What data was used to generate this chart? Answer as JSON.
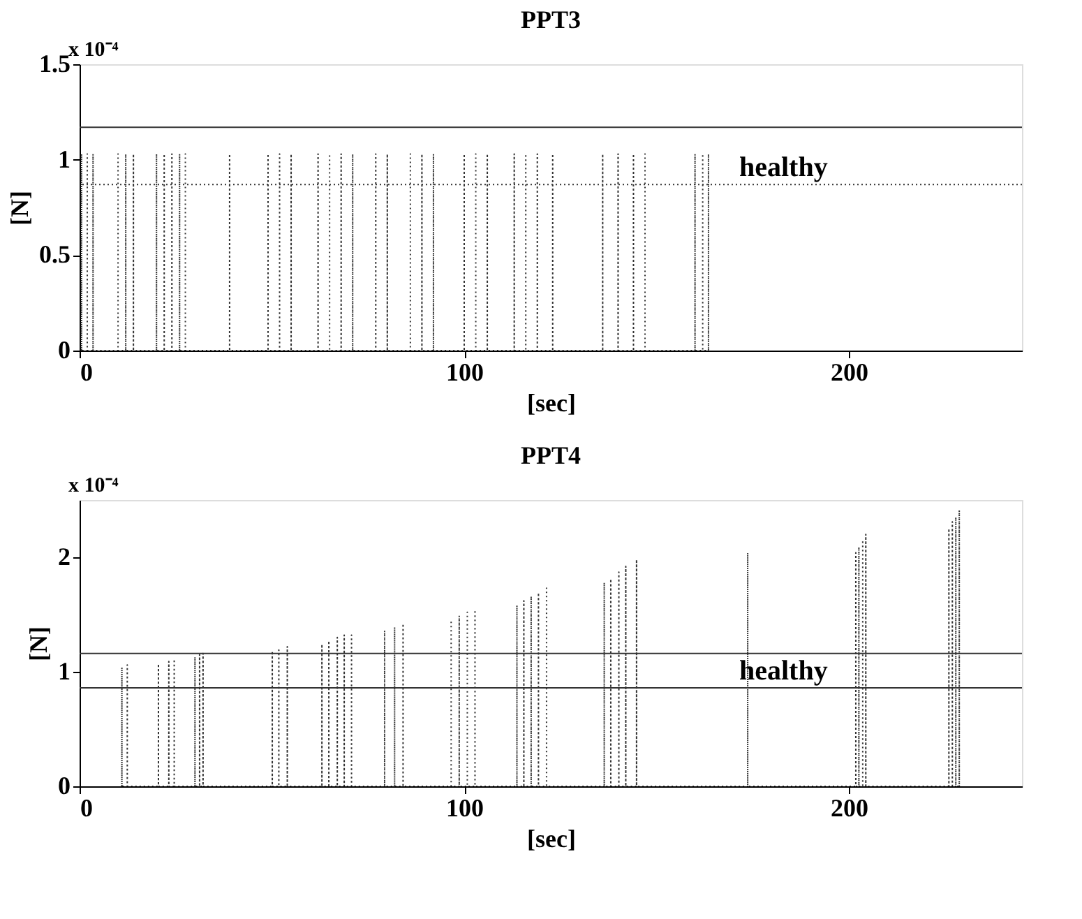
{
  "chart_data": [
    {
      "type": "line",
      "title": "PPT3",
      "xlabel": "[sec]",
      "ylabel": "[N]",
      "xlim": [
        0,
        245
      ],
      "xticks": [
        0,
        100,
        200
      ],
      "ylim": [
        0,
        1.5
      ],
      "yticks": [
        0,
        0.5,
        1,
        1.5
      ],
      "grid": false,
      "marker": "none",
      "line_style": "dotted",
      "series": [
        {
          "color": "#333333",
          "x": [
            0.5,
            0.5,
            0.5,
            2,
            2,
            2,
            3.5,
            3.5,
            3.5,
            10,
            10,
            10,
            12,
            12,
            12,
            14,
            14,
            14,
            20,
            20,
            20,
            22,
            22,
            22,
            24,
            24,
            24,
            26,
            26,
            26,
            27.5,
            27.5,
            27.5,
            39,
            39,
            39,
            49,
            49,
            49,
            52,
            52,
            52,
            55,
            55,
            55,
            62,
            62,
            62,
            65,
            65,
            65,
            68,
            68,
            68,
            71,
            71,
            71,
            77,
            77,
            77,
            80,
            80,
            80,
            86,
            86,
            86,
            89,
            89,
            89,
            92,
            92,
            92,
            100,
            100,
            100,
            103,
            103,
            103,
            106,
            106,
            106,
            113,
            113,
            113,
            116,
            116,
            116,
            119,
            119,
            119,
            123,
            123,
            123,
            136,
            136,
            136,
            140,
            140,
            140,
            144,
            144,
            144,
            147,
            147,
            147,
            160,
            160,
            160,
            162,
            162,
            162,
            163.5,
            163.5,
            163.5
          ],
          "values": [
            0,
            1.03,
            0,
            0,
            1.03,
            0,
            0,
            1.03,
            0,
            0,
            1.03,
            0,
            0,
            1.03,
            0,
            0,
            1.03,
            0,
            0,
            1.03,
            0,
            0,
            1.03,
            0,
            0,
            1.03,
            0,
            0,
            1.03,
            0,
            0,
            1.03,
            0,
            0,
            1.03,
            0,
            0,
            1.03,
            0,
            0,
            1.03,
            0,
            0,
            1.03,
            0,
            0,
            1.03,
            0,
            0,
            1.03,
            0,
            0,
            1.03,
            0,
            0,
            1.03,
            0,
            0,
            1.03,
            0,
            0,
            1.03,
            0,
            0,
            1.03,
            0,
            0,
            1.03,
            0,
            0,
            1.03,
            0,
            0,
            1.03,
            0,
            0,
            1.03,
            0,
            0,
            1.03,
            0,
            0,
            1.03,
            0,
            0,
            1.03,
            0,
            0,
            1.03,
            0,
            0,
            1.03,
            0,
            0,
            1.03,
            0,
            0,
            1.03,
            0,
            0,
            1.03,
            0,
            0,
            1.03,
            0,
            0,
            1.03,
            0,
            0,
            1.03,
            0,
            0,
            1.03,
            0
          ]
        }
      ],
      "ref_lines": [
        {
          "axis": "y",
          "value": 1.17,
          "color": "#333333",
          "line_style": "solid"
        },
        {
          "axis": "y",
          "value": 0.87,
          "color": "#333333",
          "line_style": "dotted",
          "label": "healthy"
        }
      ],
      "annotations": [
        "x 10⁻⁴"
      ]
    },
    {
      "type": "line",
      "title": "PPT4",
      "xlabel": "[sec]",
      "ylabel": "[N]",
      "xlim": [
        0,
        245
      ],
      "xticks": [
        0,
        100,
        200
      ],
      "ylim": [
        0,
        2.5
      ],
      "yticks": [
        0,
        1,
        2
      ],
      "grid": false,
      "marker": "none",
      "line_style": "dotted",
      "series": [
        {
          "color": "#333333",
          "x": [
            11.0,
            11.0,
            11.0,
            12.4,
            12.4,
            12.4,
            20.5,
            20.5,
            20.5,
            23.2,
            23.2,
            23.2,
            24.6,
            24.6,
            24.6,
            30.0,
            30.0,
            30.0,
            31.2,
            31.2,
            31.2,
            32.1,
            32.1,
            32.1,
            50.1,
            50.1,
            50.1,
            51.8,
            51.8,
            51.8,
            54.0,
            54.0,
            54.0,
            63.0,
            63.0,
            63.0,
            64.8,
            64.8,
            64.8,
            67.0,
            67.0,
            67.0,
            68.8,
            68.8,
            68.8,
            70.7,
            70.7,
            70.7,
            79.3,
            79.3,
            79.3,
            81.9,
            81.9,
            81.9,
            84.1,
            84.1,
            84.1,
            96.6,
            96.6,
            96.6,
            98.7,
            98.7,
            98.7,
            100.8,
            100.8,
            100.8,
            102.8,
            102.8,
            102.8,
            113.7,
            113.7,
            113.7,
            115.5,
            115.5,
            115.5,
            117.4,
            117.4,
            117.4,
            119.3,
            119.3,
            119.3,
            121.4,
            121.4,
            121.4,
            136.4,
            136.4,
            136.4,
            138.1,
            138.1,
            138.1,
            140.2,
            140.2,
            140.2,
            142.0,
            142.0,
            142.0,
            144.8,
            144.8,
            144.8,
            173.7,
            173.7,
            173.7,
            201.8,
            201.8,
            201.8,
            202.6,
            202.6,
            202.6,
            203.6,
            203.6,
            203.6,
            204.4,
            204.4,
            204.4,
            226.0,
            226.0,
            226.0,
            226.9,
            226.9,
            226.9,
            227.8,
            227.8,
            227.8,
            228.7,
            228.7,
            228.7
          ],
          "values": [
            0,
            1.04,
            0,
            0,
            1.06,
            0,
            0,
            1.07,
            0,
            0,
            1.09,
            0,
            0,
            1.11,
            0,
            0,
            1.13,
            0,
            0,
            1.15,
            0,
            0,
            1.16,
            0,
            0,
            1.18,
            0,
            0,
            1.19,
            0,
            0,
            1.22,
            0,
            0,
            1.24,
            0,
            0,
            1.27,
            0,
            0,
            1.3,
            0,
            0,
            1.32,
            0,
            0,
            1.32,
            0,
            0,
            1.36,
            0,
            0,
            1.39,
            0,
            0,
            1.42,
            0,
            0,
            1.45,
            0,
            0,
            1.49,
            0,
            0,
            1.52,
            0,
            0,
            1.54,
            0,
            0,
            1.58,
            0,
            0,
            1.62,
            0,
            0,
            1.66,
            0,
            0,
            1.69,
            0,
            0,
            1.73,
            0,
            0,
            1.78,
            0,
            0,
            1.81,
            0,
            0,
            1.87,
            0,
            0,
            1.92,
            0,
            0,
            1.98,
            0,
            0,
            2.04,
            0,
            0,
            2.04,
            0,
            0,
            2.09,
            0,
            0,
            2.15,
            0,
            0,
            2.2,
            0,
            0,
            2.25,
            0,
            0,
            2.31,
            0,
            0,
            2.35,
            0,
            0,
            2.41,
            0
          ]
        }
      ],
      "ref_lines": [
        {
          "axis": "y",
          "value": 1.16,
          "color": "#333333",
          "line_style": "solid"
        },
        {
          "axis": "y",
          "value": 0.86,
          "color": "#333333",
          "line_style": "solid",
          "label": "healthy"
        }
      ],
      "annotations": [
        "x 10⁻⁴"
      ]
    }
  ]
}
